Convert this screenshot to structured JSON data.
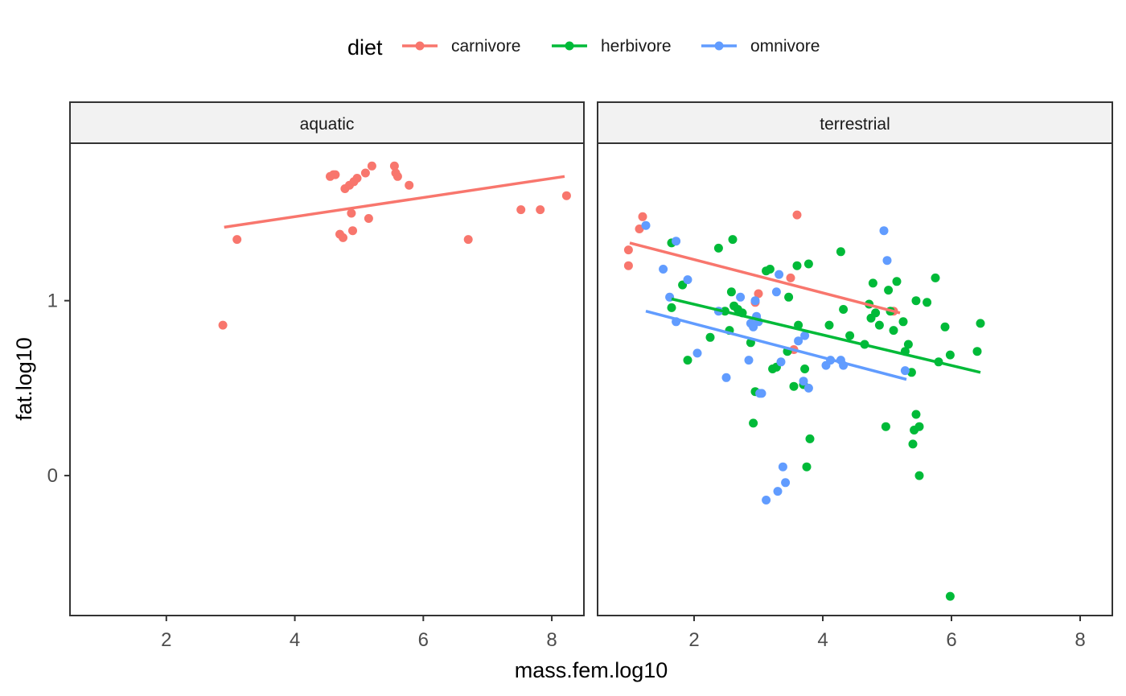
{
  "chart_data": {
    "type": "scatter",
    "xlabel": "mass.fem.log10",
    "ylabel": "fat.log10",
    "xlim": [
      0.5,
      8.5
    ],
    "ylim": [
      -0.8,
      1.9
    ],
    "x_ticks": [
      2,
      4,
      6,
      8
    ],
    "y_ticks": [
      0,
      1
    ],
    "legend": {
      "title": "diet",
      "position": "top",
      "entries": [
        "carnivore",
        "herbivore",
        "omnivore"
      ]
    },
    "colors": {
      "carnivore": "#F8766D",
      "herbivore": "#00BA38",
      "omnivore": "#619CFF"
    },
    "grid": false,
    "panels": [
      {
        "label": "aquatic",
        "series": [
          {
            "name": "carnivore",
            "points": [
              [
                2.88,
                0.86
              ],
              [
                3.1,
                1.35
              ],
              [
                4.55,
                1.71
              ],
              [
                4.6,
                1.72
              ],
              [
                4.63,
                1.72
              ],
              [
                4.7,
                1.38
              ],
              [
                4.75,
                1.36
              ],
              [
                4.78,
                1.64
              ],
              [
                4.85,
                1.66
              ],
              [
                4.88,
                1.5
              ],
              [
                4.9,
                1.4
              ],
              [
                4.92,
                1.68
              ],
              [
                4.97,
                1.7
              ],
              [
                5.1,
                1.73
              ],
              [
                5.15,
                1.47
              ],
              [
                5.2,
                1.77
              ],
              [
                5.55,
                1.77
              ],
              [
                5.57,
                1.73
              ],
              [
                5.6,
                1.71
              ],
              [
                5.78,
                1.66
              ],
              [
                6.7,
                1.35
              ],
              [
                7.52,
                1.52
              ],
              [
                7.82,
                1.52
              ],
              [
                8.23,
                1.6
              ]
            ],
            "trend": [
              [
                2.9,
                1.42
              ],
              [
                8.2,
                1.71
              ]
            ]
          }
        ]
      },
      {
        "label": "terrestrial",
        "series": [
          {
            "name": "carnivore",
            "points": [
              [
                0.98,
                1.29
              ],
              [
                0.98,
                1.2
              ],
              [
                1.15,
                1.41
              ],
              [
                1.2,
                1.48
              ],
              [
                2.95,
                0.99
              ],
              [
                3.0,
                1.04
              ],
              [
                3.5,
                1.13
              ],
              [
                3.55,
                0.72
              ],
              [
                3.6,
                1.49
              ],
              [
                5.1,
                0.94
              ]
            ],
            "trend": [
              [
                1.0,
                1.33
              ],
              [
                5.2,
                0.93
              ]
            ]
          },
          {
            "name": "herbivore",
            "points": [
              [
                1.65,
                1.33
              ],
              [
                1.65,
                0.96
              ],
              [
                1.82,
                1.09
              ],
              [
                1.9,
                0.66
              ],
              [
                2.25,
                0.79
              ],
              [
                2.38,
                1.3
              ],
              [
                2.48,
                0.94
              ],
              [
                2.55,
                0.83
              ],
              [
                2.58,
                1.05
              ],
              [
                2.6,
                1.35
              ],
              [
                2.62,
                0.97
              ],
              [
                2.68,
                0.95
              ],
              [
                2.75,
                0.93
              ],
              [
                2.88,
                0.76
              ],
              [
                2.92,
                0.3
              ],
              [
                2.95,
                0.48
              ],
              [
                3.12,
                1.17
              ],
              [
                3.18,
                1.18
              ],
              [
                3.22,
                0.61
              ],
              [
                3.28,
                0.62
              ],
              [
                3.45,
                0.71
              ],
              [
                3.47,
                1.02
              ],
              [
                3.55,
                0.51
              ],
              [
                3.6,
                1.2
              ],
              [
                3.62,
                0.86
              ],
              [
                3.7,
                0.52
              ],
              [
                3.72,
                0.61
              ],
              [
                3.75,
                0.05
              ],
              [
                3.78,
                1.21
              ],
              [
                3.8,
                0.21
              ],
              [
                4.1,
                0.86
              ],
              [
                4.28,
                1.28
              ],
              [
                4.32,
                0.95
              ],
              [
                4.42,
                0.8
              ],
              [
                4.65,
                0.75
              ],
              [
                4.72,
                0.98
              ],
              [
                4.75,
                0.9
              ],
              [
                4.78,
                1.1
              ],
              [
                4.82,
                0.93
              ],
              [
                4.88,
                0.86
              ],
              [
                5.02,
                1.06
              ],
              [
                5.05,
                0.94
              ],
              [
                5.1,
                0.83
              ],
              [
                5.15,
                1.11
              ],
              [
                5.25,
                0.88
              ],
              [
                5.28,
                0.71
              ],
              [
                5.33,
                0.75
              ],
              [
                5.38,
                0.59
              ],
              [
                5.4,
                0.18
              ],
              [
                5.42,
                0.26
              ],
              [
                5.45,
                1.0
              ],
              [
                5.45,
                0.35
              ],
              [
                5.5,
                0.28
              ],
              [
                5.5,
                0.0
              ],
              [
                5.62,
                0.99
              ],
              [
                5.75,
                1.13
              ],
              [
                5.8,
                0.65
              ],
              [
                5.9,
                0.85
              ],
              [
                5.98,
                0.69
              ],
              [
                5.98,
                -0.69
              ],
              [
                6.4,
                0.71
              ],
              [
                6.45,
                0.87
              ],
              [
                4.98,
                0.28
              ]
            ],
            "trend": [
              [
                1.65,
                1.01
              ],
              [
                6.45,
                0.59
              ]
            ]
          },
          {
            "name": "omnivore",
            "points": [
              [
                1.25,
                1.43
              ],
              [
                1.52,
                1.18
              ],
              [
                1.62,
                1.02
              ],
              [
                1.72,
                1.34
              ],
              [
                1.72,
                0.88
              ],
              [
                1.9,
                1.12
              ],
              [
                2.05,
                0.7
              ],
              [
                2.38,
                0.94
              ],
              [
                2.5,
                0.56
              ],
              [
                2.72,
                1.02
              ],
              [
                2.85,
                0.66
              ],
              [
                2.88,
                0.87
              ],
              [
                2.92,
                0.85
              ],
              [
                2.95,
                1.0
              ],
              [
                2.97,
                0.91
              ],
              [
                3.0,
                0.88
              ],
              [
                3.02,
                0.47
              ],
              [
                3.05,
                0.47
              ],
              [
                3.12,
                -0.14
              ],
              [
                3.28,
                1.05
              ],
              [
                3.3,
                -0.09
              ],
              [
                3.32,
                1.15
              ],
              [
                3.35,
                0.65
              ],
              [
                3.38,
                0.05
              ],
              [
                3.42,
                -0.04
              ],
              [
                3.62,
                0.77
              ],
              [
                3.7,
                0.54
              ],
              [
                3.72,
                0.8
              ],
              [
                3.78,
                0.5
              ],
              [
                4.05,
                0.63
              ],
              [
                4.12,
                0.66
              ],
              [
                4.28,
                0.66
              ],
              [
                4.32,
                0.63
              ],
              [
                4.95,
                1.4
              ],
              [
                5.0,
                1.23
              ],
              [
                5.28,
                0.6
              ]
            ],
            "trend": [
              [
                1.25,
                0.94
              ],
              [
                5.3,
                0.55
              ]
            ]
          }
        ]
      }
    ]
  }
}
